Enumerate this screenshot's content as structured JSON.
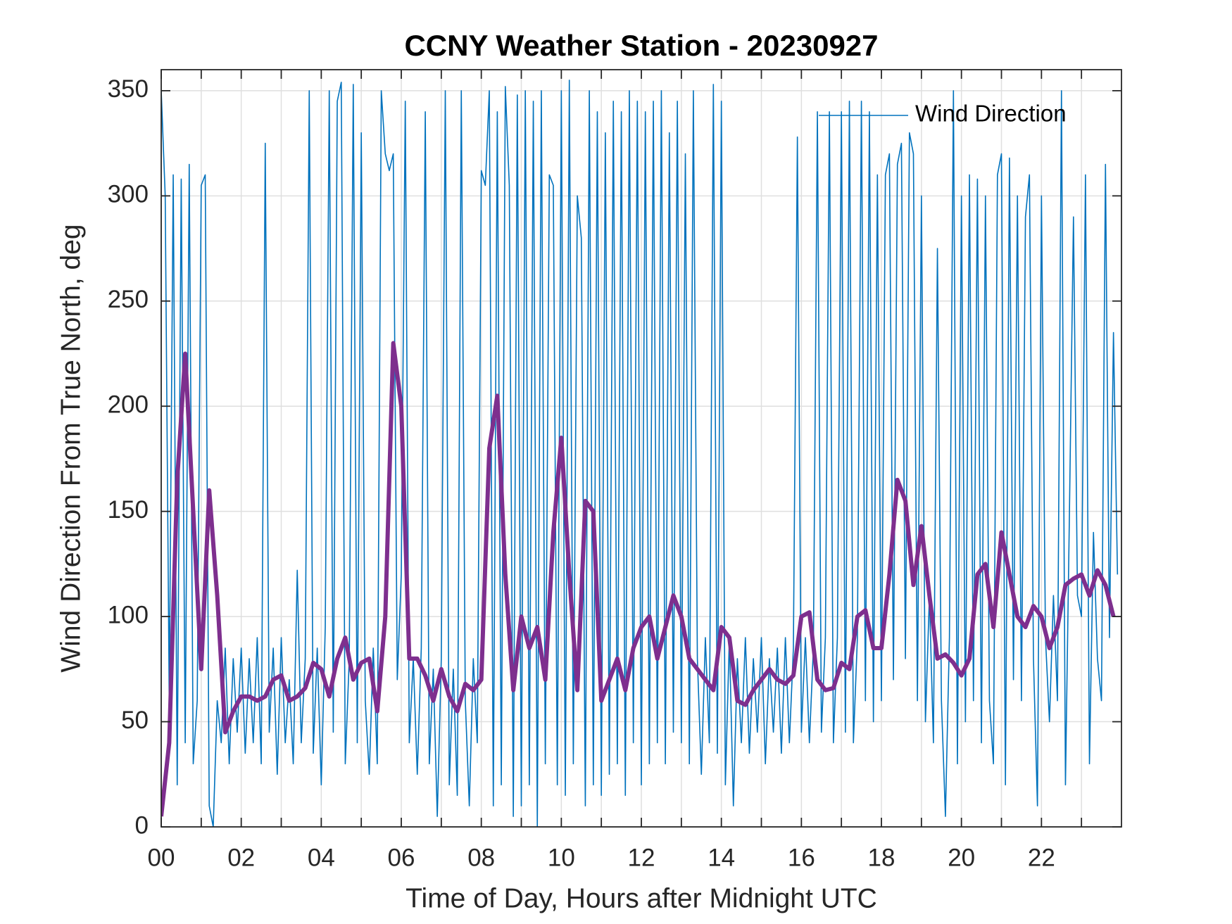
{
  "chart_data": {
    "type": "line",
    "title": "CCNY Weather Station - 20230927",
    "xlabel": "Time of Day, Hours after Midnight UTC",
    "ylabel": "Wind Direction From True North, deg",
    "xlim": [
      0,
      24
    ],
    "ylim": [
      0,
      360
    ],
    "xticks": [
      {
        "value": 0,
        "label": "00"
      },
      {
        "value": 2,
        "label": "02"
      },
      {
        "value": 4,
        "label": "04"
      },
      {
        "value": 6,
        "label": "06"
      },
      {
        "value": 8,
        "label": "08"
      },
      {
        "value": 10,
        "label": "10"
      },
      {
        "value": 12,
        "label": "12"
      },
      {
        "value": 14,
        "label": "14"
      },
      {
        "value": 16,
        "label": "16"
      },
      {
        "value": 18,
        "label": "18"
      },
      {
        "value": 20,
        "label": "20"
      },
      {
        "value": 22,
        "label": "22"
      }
    ],
    "xminor_ticks": [
      1,
      3,
      5,
      7,
      9,
      11,
      13,
      15,
      17,
      19,
      21,
      23
    ],
    "yticks": [
      0,
      50,
      100,
      150,
      200,
      250,
      300,
      350
    ],
    "grid": true,
    "legend": "upper right",
    "series": [
      {
        "name": "Wind Direction",
        "color": "#0072bd",
        "width": 1.6,
        "x": [
          0,
          0.1,
          0.2,
          0.3,
          0.4,
          0.5,
          0.6,
          0.7,
          0.8,
          0.9,
          1,
          1.1,
          1.2,
          1.3,
          1.4,
          1.5,
          1.6,
          1.7,
          1.8,
          1.9,
          2,
          2.1,
          2.2,
          2.3,
          2.4,
          2.5,
          2.6,
          2.7,
          2.8,
          2.9,
          3,
          3.1,
          3.2,
          3.3,
          3.4,
          3.5,
          3.6,
          3.7,
          3.8,
          3.9,
          4,
          4.1,
          4.2,
          4.3,
          4.4,
          4.5,
          4.6,
          4.7,
          4.8,
          4.9,
          5,
          5.1,
          5.2,
          5.3,
          5.4,
          5.5,
          5.6,
          5.7,
          5.8,
          5.9,
          6,
          6.1,
          6.2,
          6.3,
          6.4,
          6.5,
          6.6,
          6.7,
          6.8,
          6.9,
          7,
          7.1,
          7.2,
          7.3,
          7.4,
          7.5,
          7.6,
          7.7,
          7.8,
          7.9,
          8,
          8.1,
          8.2,
          8.3,
          8.4,
          8.5,
          8.6,
          8.7,
          8.8,
          8.9,
          9,
          9.1,
          9.2,
          9.3,
          9.4,
          9.5,
          9.6,
          9.7,
          9.8,
          9.9,
          10,
          10.1,
          10.2,
          10.3,
          10.4,
          10.5,
          10.6,
          10.7,
          10.8,
          10.9,
          11,
          11.1,
          11.2,
          11.3,
          11.4,
          11.5,
          11.6,
          11.7,
          11.8,
          11.9,
          12,
          12.1,
          12.2,
          12.3,
          12.4,
          12.5,
          12.6,
          12.7,
          12.8,
          12.9,
          13,
          13.1,
          13.2,
          13.3,
          13.4,
          13.5,
          13.6,
          13.7,
          13.8,
          13.9,
          14,
          14.1,
          14.2,
          14.3,
          14.4,
          14.5,
          14.6,
          14.7,
          14.8,
          14.9,
          15,
          15.1,
          15.2,
          15.3,
          15.4,
          15.5,
          15.6,
          15.7,
          15.8,
          15.9,
          16,
          16.1,
          16.2,
          16.3,
          16.4,
          16.5,
          16.6,
          16.7,
          16.8,
          16.9,
          17,
          17.1,
          17.2,
          17.3,
          17.4,
          17.5,
          17.6,
          17.7,
          17.8,
          17.9,
          18,
          18.1,
          18.2,
          18.3,
          18.4,
          18.5,
          18.6,
          18.7,
          18.8,
          18.9,
          19,
          19.1,
          19.2,
          19.3,
          19.4,
          19.5,
          19.6,
          19.7,
          19.8,
          19.9,
          20,
          20.1,
          20.2,
          20.3,
          20.4,
          20.5,
          20.6,
          20.7,
          20.8,
          20.9,
          21,
          21.1,
          21.2,
          21.3,
          21.4,
          21.5,
          21.6,
          21.7,
          21.8,
          21.9,
          22,
          22.1,
          22.2,
          22.3,
          22.4,
          22.5,
          22.6,
          22.7,
          22.8,
          22.9,
          23,
          23.1,
          23.2,
          23.3,
          23.4,
          23.5,
          23.6,
          23.7,
          23.8,
          23.9
        ],
        "values": [
          350,
          300,
          60,
          310,
          20,
          308,
          40,
          315,
          30,
          60,
          305,
          310,
          10,
          0,
          60,
          40,
          85,
          30,
          80,
          45,
          85,
          35,
          80,
          40,
          90,
          30,
          325,
          45,
          85,
          25,
          90,
          40,
          70,
          30,
          122,
          40,
          80,
          350,
          35,
          85,
          20,
          95,
          350,
          45,
          345,
          354,
          30,
          80,
          353,
          40,
          330,
          60,
          25,
          85,
          30,
          350,
          320,
          312,
          320,
          70,
          120,
          345,
          40,
          80,
          25,
          85,
          340,
          30,
          75,
          5,
          80,
          350,
          20,
          75,
          15,
          350,
          60,
          10,
          80,
          40,
          312,
          305,
          350,
          10,
          340,
          20,
          352,
          305,
          5,
          348,
          10,
          350,
          20,
          345,
          0,
          350,
          30,
          310,
          305,
          20,
          350,
          15,
          355,
          30,
          300,
          280,
          10,
          350,
          20,
          340,
          15,
          330,
          25,
          345,
          30,
          340,
          15,
          350,
          40,
          345,
          20,
          340,
          30,
          345,
          40,
          350,
          30,
          330,
          45,
          345,
          40,
          320,
          30,
          350,
          80,
          25,
          90,
          40,
          353,
          35,
          345,
          20,
          90,
          10,
          80,
          40,
          90,
          35,
          80,
          45,
          90,
          30,
          80,
          45,
          85,
          35,
          90,
          40,
          85,
          328,
          45,
          90,
          40,
          85,
          340,
          45,
          90,
          340,
          40,
          90,
          340,
          45,
          345,
          40,
          90,
          345,
          60,
          340,
          50,
          310,
          60,
          310,
          320,
          70,
          315,
          325,
          80,
          330,
          320,
          60,
          300,
          50,
          110,
          40,
          275,
          60,
          5,
          90,
          350,
          30,
          300,
          50,
          310,
          60,
          308,
          40,
          300,
          60,
          30,
          310,
          320,
          20,
          318,
          70,
          300,
          60,
          290,
          310,
          80,
          10,
          300,
          90,
          50,
          110,
          60,
          350,
          20,
          150,
          290,
          110,
          100,
          310,
          30,
          140,
          80,
          60,
          315,
          90,
          235,
          120
        ]
      },
      {
        "color": "#7e2f8e",
        "width": 6,
        "x": [
          0,
          0.2,
          0.4,
          0.6,
          0.8,
          1,
          1.2,
          1.4,
          1.6,
          1.8,
          2,
          2.2,
          2.4,
          2.6,
          2.8,
          3,
          3.2,
          3.4,
          3.6,
          3.8,
          4,
          4.2,
          4.4,
          4.6,
          4.8,
          5,
          5.2,
          5.4,
          5.6,
          5.8,
          6,
          6.2,
          6.4,
          6.6,
          6.8,
          7,
          7.2,
          7.4,
          7.6,
          7.8,
          8,
          8.2,
          8.4,
          8.6,
          8.8,
          9,
          9.2,
          9.4,
          9.6,
          9.8,
          10,
          10.2,
          10.4,
          10.6,
          10.8,
          11,
          11.2,
          11.4,
          11.6,
          11.8,
          12,
          12.2,
          12.4,
          12.6,
          12.8,
          13,
          13.2,
          13.4,
          13.6,
          13.8,
          14,
          14.2,
          14.4,
          14.6,
          14.8,
          15,
          15.2,
          15.4,
          15.6,
          15.8,
          16,
          16.2,
          16.4,
          16.6,
          16.8,
          17,
          17.2,
          17.4,
          17.6,
          17.8,
          18,
          18.2,
          18.4,
          18.6,
          18.8,
          19,
          19.2,
          19.4,
          19.6,
          19.8,
          20,
          20.2,
          20.4,
          20.6,
          20.8,
          21,
          21.2,
          21.4,
          21.6,
          21.8,
          22,
          22.2,
          22.4,
          22.6,
          22.8,
          23,
          23.2,
          23.4,
          23.6,
          23.8
        ],
        "values": [
          5,
          40,
          165,
          225,
          150,
          75,
          160,
          110,
          45,
          55,
          62,
          62,
          60,
          62,
          70,
          72,
          60,
          62,
          66,
          78,
          75,
          62,
          80,
          90,
          70,
          78,
          80,
          55,
          100,
          230,
          200,
          80,
          80,
          72,
          60,
          75,
          62,
          55,
          68,
          65,
          70,
          180,
          205,
          120,
          65,
          100,
          85,
          95,
          70,
          140,
          185,
          120,
          65,
          155,
          150,
          60,
          70,
          80,
          65,
          85,
          95,
          100,
          80,
          95,
          110,
          100,
          80,
          75,
          70,
          65,
          95,
          90,
          60,
          58,
          65,
          70,
          75,
          70,
          68,
          72,
          100,
          102,
          70,
          65,
          66,
          78,
          75,
          100,
          103,
          85,
          85,
          120,
          165,
          155,
          115,
          143,
          110,
          80,
          82,
          78,
          72,
          80,
          120,
          125,
          95,
          140,
          120,
          100,
          95,
          105,
          100,
          85,
          95,
          115,
          118,
          120,
          110,
          122,
          115,
          100
        ]
      }
    ]
  }
}
